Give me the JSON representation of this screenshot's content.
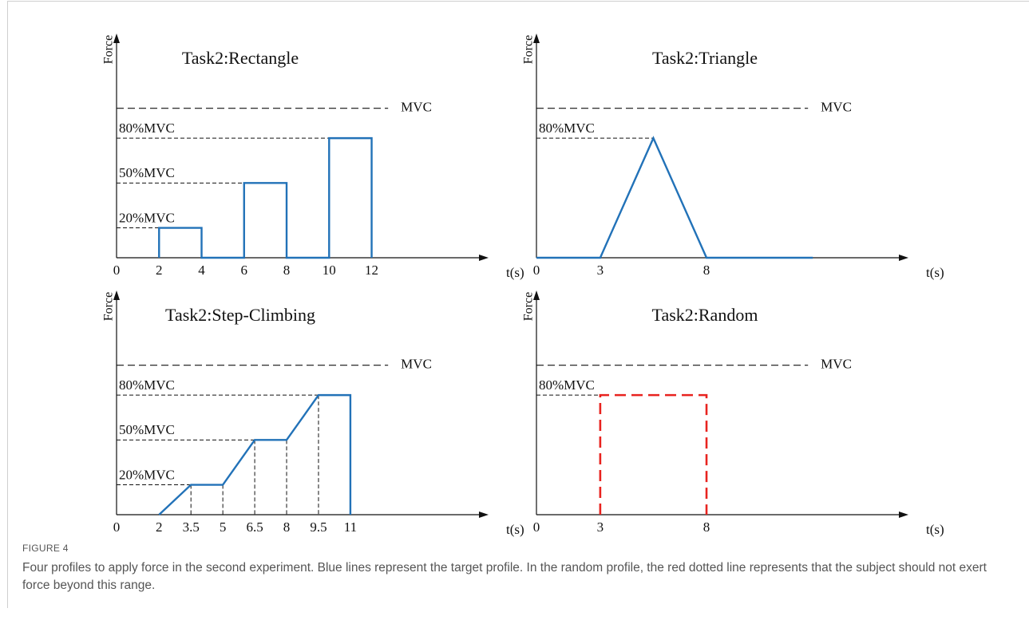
{
  "chart_data": [
    {
      "type": "line",
      "title": "Task2:Rectangle",
      "y_label": "Force",
      "x_label": "t(s)",
      "x": [
        2,
        2,
        4,
        4,
        6,
        6,
        8,
        8,
        10,
        10,
        12,
        12
      ],
      "values": [
        0,
        20,
        20,
        0,
        0,
        50,
        50,
        0,
        0,
        80,
        80,
        0
      ],
      "color": "#2272b8",
      "dashed": false,
      "droplines": false,
      "xlim": [
        0,
        17.5
      ],
      "xticks": [
        0,
        2,
        4,
        6,
        8,
        10,
        12
      ],
      "ylim": [
        0,
        150
      ],
      "yticks": [
        {
          "value": 20,
          "label": "20%MVC"
        },
        {
          "value": 50,
          "label": "50%MVC"
        },
        {
          "value": 80,
          "label": "80%MVC"
        },
        {
          "value": 100,
          "label": "MVC"
        }
      ]
    },
    {
      "type": "line",
      "title": "Task2:Triangle",
      "y_label": "Force",
      "x_label": "t(s)",
      "x": [
        0,
        3,
        5.5,
        8,
        13
      ],
      "values": [
        0,
        0,
        80,
        0,
        0
      ],
      "color": "#2272b8",
      "dashed": false,
      "droplines": false,
      "xlim": [
        0,
        17.5
      ],
      "xticks": [
        0,
        3,
        8
      ],
      "ylim": [
        0,
        150
      ],
      "yticks": [
        {
          "value": 80,
          "label": "80%MVC"
        },
        {
          "value": 100,
          "label": "MVC"
        }
      ]
    },
    {
      "type": "line",
      "title": "Task2:Step-Climbing",
      "y_label": "Force",
      "x_label": "t(s)",
      "x": [
        2,
        3.5,
        5,
        6.5,
        8,
        9.5,
        11,
        11
      ],
      "values": [
        0,
        20,
        20,
        50,
        50,
        80,
        80,
        0
      ],
      "color": "#2272b8",
      "dashed": false,
      "droplines": true,
      "xlim": [
        0,
        17.5
      ],
      "xticks": [
        0,
        2,
        3.5,
        5,
        6.5,
        8,
        9.5,
        11
      ],
      "ylim": [
        0,
        150
      ],
      "yticks": [
        {
          "value": 20,
          "label": "20%MVC"
        },
        {
          "value": 50,
          "label": "50%MVC"
        },
        {
          "value": 80,
          "label": "80%MVC"
        },
        {
          "value": 100,
          "label": "MVC"
        }
      ]
    },
    {
      "type": "line",
      "title": "Task2:Random",
      "y_label": "Force",
      "x_label": "t(s)",
      "x": [
        3,
        3,
        8,
        8
      ],
      "values": [
        0,
        80,
        80,
        0
      ],
      "color": "#e8231f",
      "dashed": true,
      "droplines": false,
      "xlim": [
        0,
        17.5
      ],
      "xticks": [
        0,
        3,
        8
      ],
      "ylim": [
        0,
        150
      ],
      "yticks": [
        {
          "value": 80,
          "label": "80%MVC"
        },
        {
          "value": 100,
          "label": "MVC"
        }
      ]
    }
  ],
  "figure": {
    "label": "FIGURE 4",
    "caption": "Four profiles to apply force in the second experiment. Blue lines represent the target profile. In the random profile, the red dotted line represents that the subject should not exert force beyond this range."
  }
}
